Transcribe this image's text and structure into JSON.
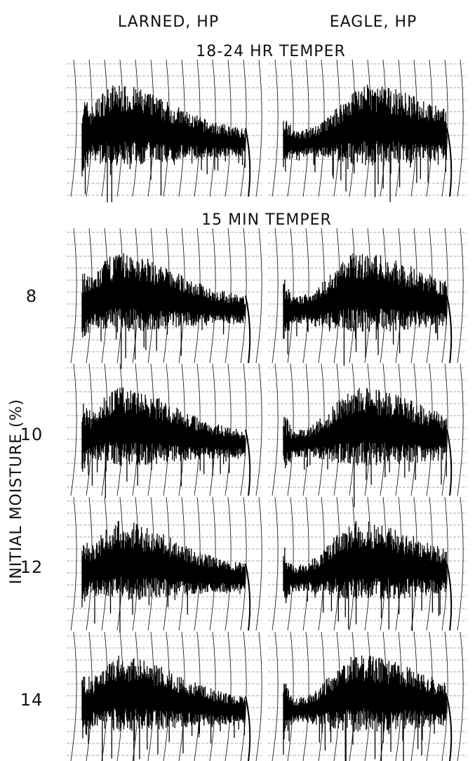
{
  "headers": {
    "left": "LARNED, HP",
    "right": "EAGLE, HP"
  },
  "sections": [
    {
      "title": "18-24 HR TEMPER"
    },
    {
      "title": "15 MIN TEMPER",
      "rows": [
        "8",
        "10",
        "12",
        "14"
      ]
    }
  ],
  "y_axis_label": "INITIAL MOISTURE (%)"
}
